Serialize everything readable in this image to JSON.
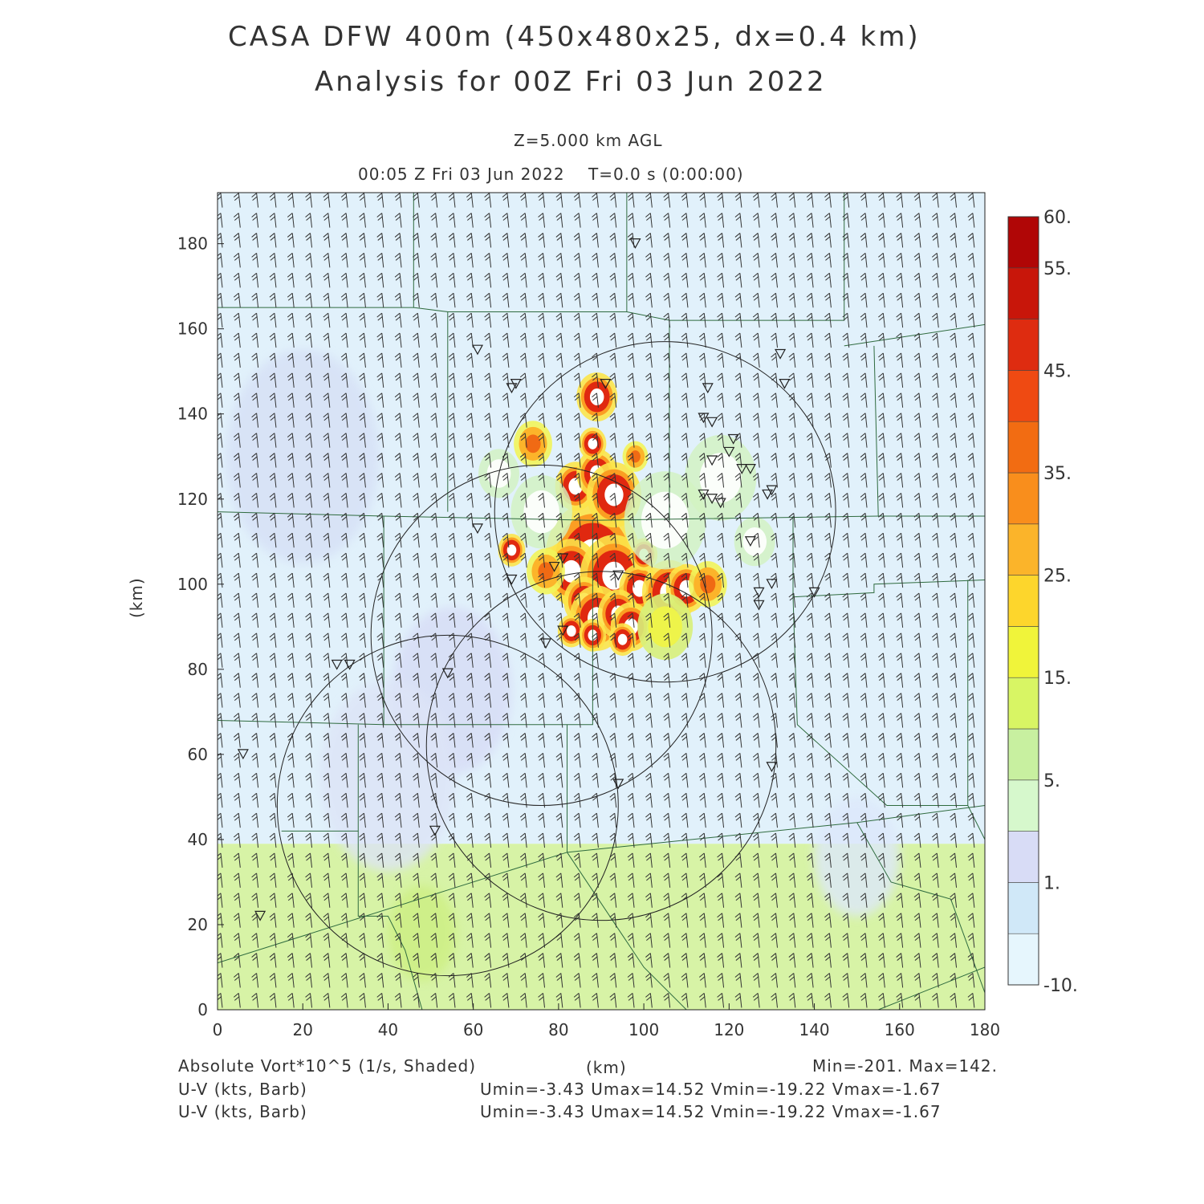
{
  "title_line1": "CASA DFW 400m (450x480x25, dx=0.4 km)",
  "title_line2": "Analysis for 00Z Fri 03 Jun 2022",
  "level_label": "Z=5.000 km AGL",
  "time_label": "00:05 Z Fri 03 Jun 2022    T=0.0 s (0:00:00)",
  "y_axis_label": "(km)",
  "x_axis_label": "(km)",
  "footer": {
    "field_label": "Absolute Vort*10^5 (1/s, Shaded)",
    "minmax": "Min=-201. Max=142.",
    "barb1_label": "U-V (kts, Barb)",
    "barb1_stats": "Umin=-3.43 Umax=14.52 Vmin=-19.22 Vmax=-1.67",
    "barb2_label": "U-V (kts, Barb)",
    "barb2_stats": "Umin=-3.43 Umax=14.52 Vmin=-19.22 Vmax=-1.67"
  },
  "chart_data": {
    "type": "heatmap",
    "xlim": [
      0,
      180
    ],
    "ylim": [
      0,
      192
    ],
    "x_ticks": [
      0,
      20,
      40,
      60,
      80,
      100,
      120,
      140,
      160,
      180
    ],
    "y_ticks": [
      0,
      20,
      40,
      60,
      80,
      100,
      120,
      140,
      160,
      180
    ],
    "x_tick_labels": [
      "0",
      "20",
      "40",
      "60",
      "80",
      "100",
      "120",
      "140",
      "160",
      "180"
    ],
    "y_tick_labels": [
      "0",
      "20",
      "40",
      "60",
      "80",
      "100",
      "120",
      "140",
      "160",
      "180"
    ],
    "colorbar": {
      "labels": [
        "-10.",
        "1.",
        "5.",
        "15.",
        "25.",
        "35.",
        "45.",
        "55.",
        "60."
      ],
      "colors": [
        "#e6f6fd",
        "#d0e8f8",
        "#d8dcf6",
        "#d6f8cc",
        "#c8f0a0",
        "#d8f564",
        "#f0f43a",
        "#fdd62c",
        "#fbb42a",
        "#f98e1c",
        "#f26c12",
        "#ef4a12",
        "#de2c10",
        "#c8160a",
        "#b00606"
      ]
    },
    "background_regions": [
      {
        "name": "north",
        "y_range": [
          39,
          192
        ],
        "color": "#e1f1fb"
      },
      {
        "name": "south",
        "y_range": [
          0,
          39
        ],
        "color": "#d7f3a6"
      }
    ],
    "radar_circles": [
      {
        "cx": 105,
        "cy": 117,
        "r": 40
      },
      {
        "cx": 76,
        "cy": 88,
        "r": 40
      },
      {
        "cx": 90,
        "cy": 62,
        "r": 41
      },
      {
        "cx": 54,
        "cy": 48,
        "r": 40
      }
    ],
    "cells": [
      {
        "x": 88,
        "y": 106,
        "r": 7,
        "v": 60
      },
      {
        "x": 83,
        "y": 103,
        "r": 4,
        "v": 55
      },
      {
        "x": 93,
        "y": 102,
        "r": 5,
        "v": 60
      },
      {
        "x": 99,
        "y": 99,
        "r": 3,
        "v": 55
      },
      {
        "x": 106,
        "y": 98,
        "r": 4,
        "v": 60
      },
      {
        "x": 110,
        "y": 99,
        "r": 3,
        "v": 50
      },
      {
        "x": 86,
        "y": 96,
        "r": 3,
        "v": 55
      },
      {
        "x": 89,
        "y": 92,
        "r": 4,
        "v": 60
      },
      {
        "x": 94,
        "y": 93,
        "r": 3,
        "v": 55
      },
      {
        "x": 97,
        "y": 90,
        "r": 3,
        "v": 50
      },
      {
        "x": 83,
        "y": 89,
        "r": 2,
        "v": 45
      },
      {
        "x": 88,
        "y": 88,
        "r": 2,
        "v": 50
      },
      {
        "x": 95,
        "y": 87,
        "r": 2,
        "v": 50
      },
      {
        "x": 84,
        "y": 123,
        "r": 3,
        "v": 55
      },
      {
        "x": 89,
        "y": 126,
        "r": 3,
        "v": 60
      },
      {
        "x": 93,
        "y": 121,
        "r": 4,
        "v": 60
      },
      {
        "x": 88,
        "y": 133,
        "r": 2,
        "v": 55
      },
      {
        "x": 89,
        "y": 144,
        "r": 3,
        "v": 55
      },
      {
        "x": 69,
        "y": 108,
        "r": 2,
        "v": 50
      },
      {
        "x": 100,
        "y": 107,
        "r": 2,
        "v": 45
      },
      {
        "x": 77,
        "y": 103,
        "r": 3,
        "v": 35
      },
      {
        "x": 74,
        "y": 133,
        "r": 3,
        "v": 30
      },
      {
        "x": 98,
        "y": 130,
        "r": 2,
        "v": 25
      },
      {
        "x": 115,
        "y": 100,
        "r": 3,
        "v": 25
      },
      {
        "x": 105,
        "y": 115,
        "r": 8,
        "v": 5
      },
      {
        "x": 118,
        "y": 125,
        "r": 7,
        "v": 5
      },
      {
        "x": 76,
        "y": 117,
        "r": 6,
        "v": 10
      },
      {
        "x": 66,
        "y": 126,
        "r": 4,
        "v": 10
      },
      {
        "x": 105,
        "y": 90,
        "r": 5,
        "v": 15
      },
      {
        "x": 126,
        "y": 110,
        "r": 4,
        "v": 5
      }
    ],
    "radar_sites": [
      [
        98,
        180
      ],
      [
        61,
        155
      ],
      [
        69,
        146
      ],
      [
        70,
        147
      ],
      [
        91,
        147
      ],
      [
        115,
        146
      ],
      [
        132,
        154
      ],
      [
        133,
        147
      ],
      [
        114,
        139
      ],
      [
        116,
        138
      ],
      [
        121,
        134
      ],
      [
        120,
        131
      ],
      [
        116,
        129
      ],
      [
        123,
        127
      ],
      [
        125,
        127
      ],
      [
        129,
        121
      ],
      [
        130,
        122
      ],
      [
        114,
        121
      ],
      [
        118,
        119
      ],
      [
        116,
        120
      ],
      [
        61,
        113
      ],
      [
        125,
        110
      ],
      [
        81,
        106
      ],
      [
        79,
        104
      ],
      [
        69,
        101
      ],
      [
        94,
        102
      ],
      [
        130,
        100
      ],
      [
        127,
        98
      ],
      [
        127,
        95
      ],
      [
        140,
        98
      ],
      [
        77,
        86
      ],
      [
        81,
        89
      ],
      [
        54,
        79
      ],
      [
        28,
        81
      ],
      [
        31,
        81
      ],
      [
        6,
        60
      ],
      [
        130,
        57
      ],
      [
        94,
        53
      ],
      [
        51,
        42
      ],
      [
        10,
        22
      ]
    ]
  }
}
